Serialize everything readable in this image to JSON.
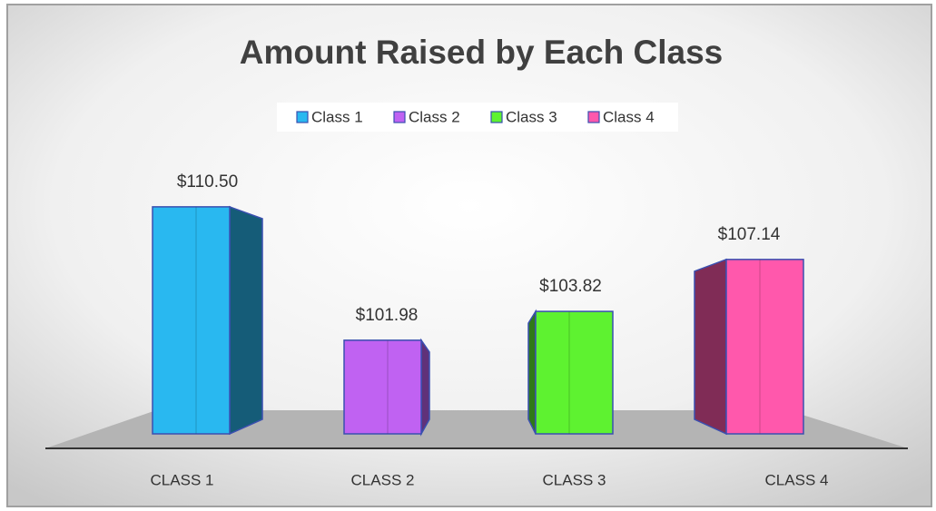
{
  "chart_data": {
    "type": "bar3d",
    "title": "Amount Raised by Each Class",
    "legend": [
      "Class 1",
      "Class 2",
      "Class 3",
      "Class 4"
    ],
    "categories": [
      "CLASS 1",
      "CLASS 2",
      "CLASS 3",
      "CLASS 4"
    ],
    "values": [
      110.5,
      101.98,
      103.82,
      107.14
    ],
    "value_labels": [
      "$110.50",
      "$101.98",
      "$103.82",
      "$107.14"
    ],
    "colors": [
      "#29b8f0",
      "#c062f2",
      "#5ef230",
      "#ff58ac"
    ],
    "ylim": [
      96,
      112
    ]
  }
}
